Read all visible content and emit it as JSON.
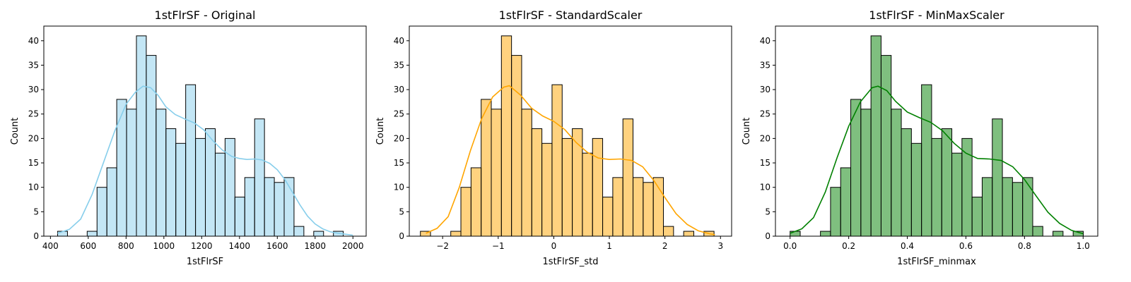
{
  "chart_data": [
    {
      "type": "histogram",
      "title": "1stFlrSF - Original",
      "xlabel": "1stFlrSF",
      "ylabel": "Count",
      "color": "#87ceeb",
      "xlim": [
        365,
        2070
      ],
      "ylim": [
        0,
        43
      ],
      "xticks": [
        "400",
        "600",
        "800",
        "1000",
        "1200",
        "1400",
        "1600",
        "1800",
        "2000"
      ],
      "yticks": [
        "0",
        "5",
        "10",
        "15",
        "20",
        "25",
        "30",
        "35",
        "40"
      ],
      "bin_start": 438,
      "bin_width": 52.1,
      "counts": [
        1,
        0,
        0,
        1,
        10,
        14,
        28,
        26,
        41,
        37,
        26,
        22,
        19,
        31,
        20,
        22,
        17,
        20,
        8,
        12,
        24,
        12,
        11,
        12,
        2,
        0,
        1,
        0,
        1
      ],
      "kde": [
        [
          438,
          0.6
        ],
        [
          500,
          1.4
        ],
        [
          560,
          3.5
        ],
        [
          620,
          8.5
        ],
        [
          680,
          15
        ],
        [
          740,
          21.5
        ],
        [
          800,
          27
        ],
        [
          850,
          29.5
        ],
        [
          890,
          30.7
        ],
        [
          930,
          30.4
        ],
        [
          970,
          28.8
        ],
        [
          1010,
          26.5
        ],
        [
          1060,
          24.9
        ],
        [
          1110,
          24.0
        ],
        [
          1160,
          23.2
        ],
        [
          1210,
          21.8
        ],
        [
          1260,
          19.5
        ],
        [
          1310,
          17.6
        ],
        [
          1360,
          16.3
        ],
        [
          1400,
          15.9
        ],
        [
          1440,
          15.7
        ],
        [
          1480,
          15.8
        ],
        [
          1520,
          15.6
        ],
        [
          1560,
          14.9
        ],
        [
          1600,
          13.6
        ],
        [
          1640,
          11.6
        ],
        [
          1680,
          9.0
        ],
        [
          1720,
          6.4
        ],
        [
          1760,
          4.1
        ],
        [
          1800,
          2.5
        ],
        [
          1840,
          1.5
        ],
        [
          1880,
          0.9
        ],
        [
          1920,
          0.6
        ],
        [
          1960,
          0.4
        ],
        [
          2000,
          0.2
        ]
      ]
    },
    {
      "type": "histogram",
      "title": "1stFlrSF - StandardScaler",
      "xlabel": "1stFlrSF_std",
      "ylabel": "Count",
      "color": "#ffa500",
      "xlim": [
        -2.6,
        3.2
      ],
      "ylim": [
        0,
        43
      ],
      "xticks": [
        "−2",
        "−1",
        "0",
        "1",
        "2",
        "3"
      ],
      "yticks": [
        "0",
        "5",
        "10",
        "15",
        "20",
        "25",
        "30",
        "35",
        "40"
      ],
      "bin_start": -2.4,
      "bin_width": 0.1822,
      "counts": [
        1,
        0,
        0,
        1,
        10,
        14,
        28,
        26,
        41,
        37,
        26,
        22,
        19,
        31,
        20,
        22,
        17,
        20,
        8,
        12,
        24,
        12,
        11,
        12,
        2,
        0,
        1,
        0,
        1
      ],
      "kde": [
        [
          -2.3,
          0.6
        ],
        [
          -2.1,
          1.6
        ],
        [
          -1.9,
          4
        ],
        [
          -1.7,
          10
        ],
        [
          -1.5,
          17.5
        ],
        [
          -1.3,
          24
        ],
        [
          -1.1,
          28.5
        ],
        [
          -0.9,
          30.5
        ],
        [
          -0.8,
          30.8
        ],
        [
          -0.6,
          28.9
        ],
        [
          -0.4,
          26.2
        ],
        [
          -0.2,
          24.6
        ],
        [
          0,
          23.5
        ],
        [
          0.2,
          21.8
        ],
        [
          0.4,
          19.2
        ],
        [
          0.6,
          17.2
        ],
        [
          0.8,
          16.0
        ],
        [
          1.0,
          15.7
        ],
        [
          1.2,
          15.8
        ],
        [
          1.4,
          15.5
        ],
        [
          1.6,
          14.2
        ],
        [
          1.8,
          11.4
        ],
        [
          2.0,
          7.9
        ],
        [
          2.2,
          4.6
        ],
        [
          2.4,
          2.4
        ],
        [
          2.6,
          1.1
        ],
        [
          2.8,
          0.5
        ],
        [
          2.9,
          0.3
        ]
      ]
    },
    {
      "type": "histogram",
      "title": "1stFlrSF - MinMaxScaler",
      "xlabel": "1stFlrSF_minmax",
      "ylabel": "Count",
      "color": "#008000",
      "xlim": [
        -0.05,
        1.05
      ],
      "ylim": [
        0,
        43
      ],
      "xticks": [
        "0.0",
        "0.2",
        "0.4",
        "0.6",
        "0.8",
        "1.0"
      ],
      "yticks": [
        "0",
        "5",
        "10",
        "15",
        "20",
        "25",
        "30",
        "35",
        "40"
      ],
      "bin_start": 0,
      "bin_width": 0.0345,
      "counts": [
        1,
        0,
        0,
        1,
        10,
        14,
        28,
        26,
        41,
        37,
        26,
        22,
        19,
        31,
        20,
        22,
        17,
        20,
        8,
        12,
        24,
        12,
        11,
        12,
        2,
        0,
        1,
        0,
        1
      ],
      "kde": [
        [
          0,
          0.6
        ],
        [
          0.04,
          1.5
        ],
        [
          0.08,
          3.8
        ],
        [
          0.12,
          9
        ],
        [
          0.16,
          16
        ],
        [
          0.2,
          22.5
        ],
        [
          0.24,
          27.5
        ],
        [
          0.28,
          30.4
        ],
        [
          0.3,
          30.7
        ],
        [
          0.33,
          29.8
        ],
        [
          0.36,
          27.6
        ],
        [
          0.4,
          25.4
        ],
        [
          0.44,
          24.3
        ],
        [
          0.48,
          23.3
        ],
        [
          0.52,
          21.6
        ],
        [
          0.56,
          19.0
        ],
        [
          0.6,
          17.0
        ],
        [
          0.64,
          15.9
        ],
        [
          0.68,
          15.8
        ],
        [
          0.72,
          15.5
        ],
        [
          0.76,
          14.2
        ],
        [
          0.8,
          11.6
        ],
        [
          0.84,
          8.2
        ],
        [
          0.88,
          4.9
        ],
        [
          0.92,
          2.6
        ],
        [
          0.96,
          1.2
        ],
        [
          1.0,
          0.5
        ]
      ]
    }
  ]
}
